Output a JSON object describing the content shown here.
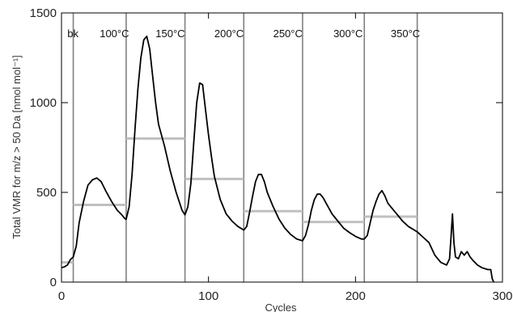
{
  "chart_data": {
    "type": "line",
    "title": "",
    "xlabel": "Cycles",
    "ylabel": "Total VMR for  m/z  > 50 Da [nmol mol⁻¹]",
    "xlim": [
      0,
      300
    ],
    "ylim": [
      0,
      1500
    ],
    "x_ticks": [
      0,
      100,
      200,
      300
    ],
    "y_ticks": [
      0,
      500,
      1000,
      1500
    ],
    "grid": false,
    "colors": {
      "line": "#000000",
      "average": "#c0c0c0",
      "boundary": "#808080",
      "axis": "#000000"
    },
    "region_boundaries": [
      8,
      44,
      84,
      124,
      164,
      206,
      242
    ],
    "regions": [
      {
        "label": "bk",
        "label_x": 4,
        "start": 0,
        "end": 8,
        "mean": 110
      },
      {
        "label": "100°C",
        "label_x": 26,
        "start": 8,
        "end": 44,
        "mean": 430
      },
      {
        "label": "150°C",
        "label_x": 64,
        "start": 44,
        "end": 84,
        "mean": 800
      },
      {
        "label": "200°C",
        "label_x": 104,
        "start": 84,
        "end": 124,
        "mean": 575
      },
      {
        "label": "250°C",
        "label_x": 144,
        "start": 124,
        "end": 164,
        "mean": 395
      },
      {
        "label": "300°C",
        "label_x": 185,
        "start": 164,
        "end": 206,
        "mean": 335
      },
      {
        "label": "350°C",
        "label_x": 224,
        "start": 206,
        "end": 242,
        "mean": 365
      }
    ],
    "series": [
      {
        "x": [
          0,
          2,
          4,
          6,
          8,
          10,
          12,
          15,
          18,
          21,
          24,
          27,
          30,
          34,
          38,
          41,
          43,
          44,
          46,
          48,
          50,
          52,
          54,
          56,
          58,
          60,
          62,
          64,
          66,
          70,
          74,
          78,
          82,
          84,
          86,
          88,
          90,
          92,
          94,
          96,
          98,
          100,
          102,
          104,
          108,
          112,
          116,
          120,
          124,
          126,
          128,
          130,
          132,
          134,
          136,
          138,
          140,
          144,
          148,
          152,
          156,
          160,
          164,
          166,
          168,
          170,
          172,
          174,
          176,
          178,
          180,
          184,
          188,
          192,
          196,
          200,
          204,
          206,
          208,
          210,
          212,
          214,
          216,
          218,
          220,
          222,
          224,
          228,
          232,
          236,
          240,
          242,
          246,
          250,
          254,
          258,
          262,
          264,
          265,
          266,
          267,
          268,
          270,
          272,
          274,
          276,
          278,
          280,
          283,
          286,
          290,
          292,
          293,
          294
        ],
        "y": [
          80,
          85,
          95,
          125,
          140,
          200,
          330,
          450,
          540,
          570,
          580,
          560,
          510,
          450,
          400,
          375,
          355,
          350,
          420,
          600,
          850,
          1080,
          1250,
          1350,
          1370,
          1300,
          1150,
          1000,
          880,
          760,
          620,
          500,
          400,
          375,
          420,
          550,
          780,
          1000,
          1110,
          1100,
          960,
          820,
          700,
          590,
          460,
          380,
          340,
          310,
          290,
          310,
          390,
          480,
          560,
          600,
          600,
          560,
          500,
          420,
          350,
          300,
          265,
          240,
          230,
          260,
          320,
          400,
          460,
          490,
          490,
          470,
          440,
          380,
          340,
          300,
          275,
          255,
          240,
          240,
          260,
          330,
          400,
          450,
          490,
          510,
          480,
          440,
          420,
          380,
          340,
          310,
          290,
          280,
          250,
          220,
          150,
          110,
          95,
          130,
          250,
          380,
          220,
          140,
          130,
          170,
          150,
          170,
          140,
          120,
          95,
          80,
          70,
          70,
          20,
          0
        ]
      }
    ]
  }
}
